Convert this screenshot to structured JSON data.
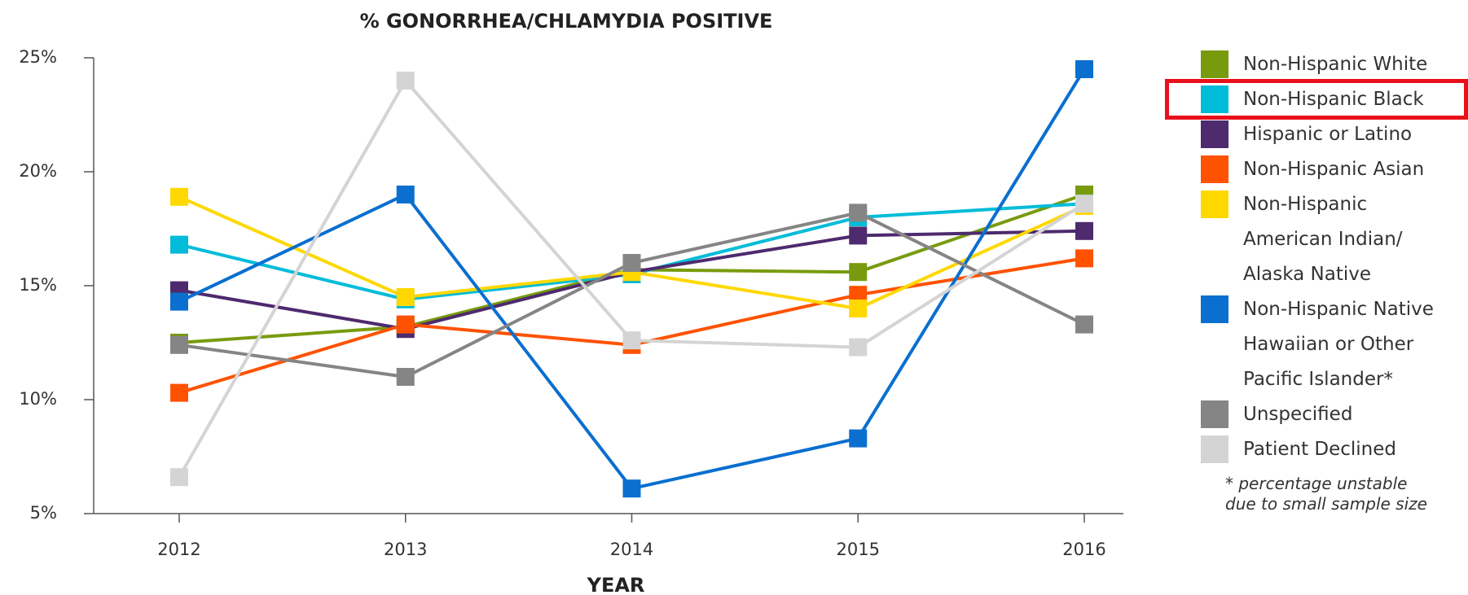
{
  "chart_data": {
    "type": "line",
    "title": "% GONORRHEA/CHLAMYDIA POSITIVE",
    "x_label": "YEAR",
    "categories": [
      "2012",
      "2013",
      "2014",
      "2015",
      "2016"
    ],
    "ylim": [
      5,
      25
    ],
    "yticks": [
      {
        "value": 5,
        "label": "5%"
      },
      {
        "value": 10,
        "label": "10%"
      },
      {
        "value": 15,
        "label": "15%"
      },
      {
        "value": 20,
        "label": "20%"
      },
      {
        "value": 25,
        "label": "25%"
      }
    ],
    "series": [
      {
        "name": "Non-Hispanic White",
        "color": "#789b0e",
        "values": [
          12.5,
          13.2,
          15.7,
          15.6,
          19.0
        ]
      },
      {
        "name": "Non-Hispanic Black",
        "color": "#00bcd9",
        "values": [
          16.8,
          14.4,
          15.5,
          18.0,
          18.6
        ]
      },
      {
        "name": "Hispanic or Latino",
        "color": "#4e2a6e",
        "values": [
          14.8,
          13.1,
          15.6,
          17.2,
          17.4
        ]
      },
      {
        "name": "Non-Hispanic Asian",
        "color": "#ff5200",
        "values": [
          10.3,
          13.3,
          12.4,
          14.6,
          16.2
        ]
      },
      {
        "name": "Non-Hispanic\nAmerican Indian/\nAlaska Native",
        "color": "#ffd800",
        "values": [
          18.9,
          14.5,
          15.6,
          14.0,
          18.5
        ]
      },
      {
        "name": "Non-Hispanic Native\nHawaiian or Other\nPacific Islander*",
        "color": "#0a6fcf",
        "values": [
          14.3,
          19.0,
          6.1,
          8.3,
          24.5
        ]
      },
      {
        "name": "Unspecified",
        "color": "#858585",
        "values": [
          12.4,
          11.0,
          16.0,
          18.2,
          13.3
        ]
      },
      {
        "name": "Patient Declined",
        "color": "#d4d4d4",
        "values": [
          6.6,
          24.0,
          12.6,
          12.3,
          18.6
        ]
      }
    ],
    "footnote": "* percentage unstable\ndue to small sample size"
  }
}
